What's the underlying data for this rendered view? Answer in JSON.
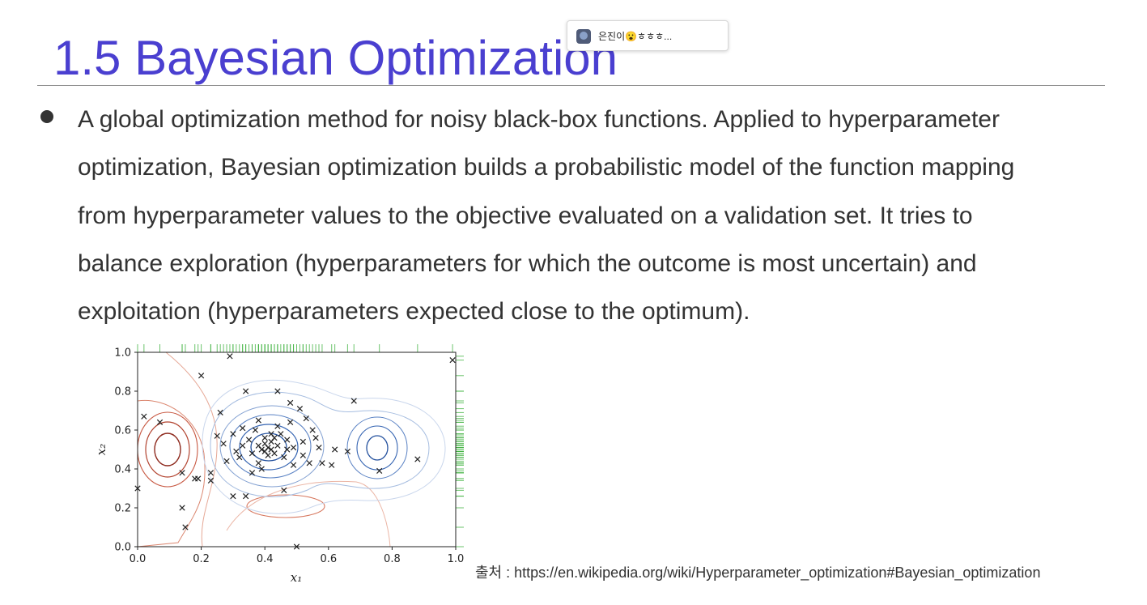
{
  "slide": {
    "title": "1.5 Bayesian Optimization",
    "body_lines": [
      "A global optimization method for noisy black-box functions. Applied to hyperparameter",
      "optimization, Bayesian optimization builds a probabilistic model of the function mapping",
      "from hyperparameter values to the objective evaluated on a validation set. It tries to",
      "balance exploration (hyperparameters for which the outcome is most uncertain) and",
      "exploitation (hyperparameters expected close to the optimum)."
    ],
    "source": "출처 : https://en.wikipedia.org/wiki/Hyperparameter_optimization#Bayesian_optimization"
  },
  "overlay": {
    "chat_preview": "은진이😮ㅎㅎㅎ..."
  },
  "chart_data": {
    "type": "scatter",
    "xlabel": "x₁",
    "ylabel": "x₂",
    "xlim": [
      0,
      1
    ],
    "ylim": [
      0,
      1
    ],
    "xticks": [
      "0.0",
      "0.2",
      "0.4",
      "0.6",
      "0.8",
      "1.0"
    ],
    "yticks": [
      "0.0",
      "0.2",
      "0.4",
      "0.6",
      "0.8",
      "1.0"
    ],
    "marker": "x",
    "background": "contour plot: red contours (high) near (0.09, 0.50) and (0.33, 0.20); blue contours (low) near (0.40, 0.52) and (0.75, 0.50)",
    "marginal_rugs": "green tick marks along the top (x) and right (y) edges",
    "colors": {
      "high": "#c0392b",
      "low": "#2c5fb0",
      "rug": "#3ab03a",
      "marker": "#222222"
    },
    "points": [
      [
        0.02,
        0.67
      ],
      [
        0.07,
        0.64
      ],
      [
        0.14,
        0.38
      ],
      [
        0.15,
        0.1
      ],
      [
        0.14,
        0.2
      ],
      [
        0.18,
        0.35
      ],
      [
        0.19,
        0.35
      ],
      [
        0.2,
        0.88
      ],
      [
        0.23,
        0.38
      ],
      [
        0.23,
        0.34
      ],
      [
        0.25,
        0.57
      ],
      [
        0.26,
        0.69
      ],
      [
        0.27,
        0.53
      ],
      [
        0.28,
        0.44
      ],
      [
        0.29,
        0.98
      ],
      [
        0.3,
        0.26
      ],
      [
        0.3,
        0.58
      ],
      [
        0.31,
        0.49
      ],
      [
        0.32,
        0.46
      ],
      [
        0.33,
        0.52
      ],
      [
        0.33,
        0.61
      ],
      [
        0.34,
        0.26
      ],
      [
        0.34,
        0.8
      ],
      [
        0.35,
        0.55
      ],
      [
        0.36,
        0.48
      ],
      [
        0.36,
        0.38
      ],
      [
        0.37,
        0.6
      ],
      [
        0.38,
        0.43
      ],
      [
        0.38,
        0.52
      ],
      [
        0.38,
        0.65
      ],
      [
        0.39,
        0.5
      ],
      [
        0.39,
        0.4
      ],
      [
        0.4,
        0.56
      ],
      [
        0.4,
        0.53
      ],
      [
        0.4,
        0.49
      ],
      [
        0.41,
        0.47
      ],
      [
        0.41,
        0.51
      ],
      [
        0.42,
        0.54
      ],
      [
        0.42,
        0.58
      ],
      [
        0.42,
        0.5
      ],
      [
        0.43,
        0.48
      ],
      [
        0.43,
        0.56
      ],
      [
        0.44,
        0.62
      ],
      [
        0.44,
        0.52
      ],
      [
        0.44,
        0.8
      ],
      [
        0.45,
        0.58
      ],
      [
        0.46,
        0.46
      ],
      [
        0.46,
        0.29
      ],
      [
        0.47,
        0.55
      ],
      [
        0.47,
        0.5
      ],
      [
        0.48,
        0.74
      ],
      [
        0.48,
        0.64
      ],
      [
        0.49,
        0.51
      ],
      [
        0.49,
        0.42
      ],
      [
        0.5,
        0.0
      ],
      [
        0.51,
        0.71
      ],
      [
        0.52,
        0.54
      ],
      [
        0.52,
        0.47
      ],
      [
        0.53,
        0.66
      ],
      [
        0.54,
        0.43
      ],
      [
        0.55,
        0.6
      ],
      [
        0.56,
        0.56
      ],
      [
        0.57,
        0.51
      ],
      [
        0.58,
        0.43
      ],
      [
        0.61,
        0.42
      ],
      [
        0.62,
        0.5
      ],
      [
        0.66,
        0.49
      ],
      [
        0.68,
        0.75
      ],
      [
        0.76,
        0.39
      ],
      [
        0.88,
        0.45
      ],
      [
        0.99,
        0.96
      ],
      [
        0.0,
        0.3
      ]
    ]
  }
}
